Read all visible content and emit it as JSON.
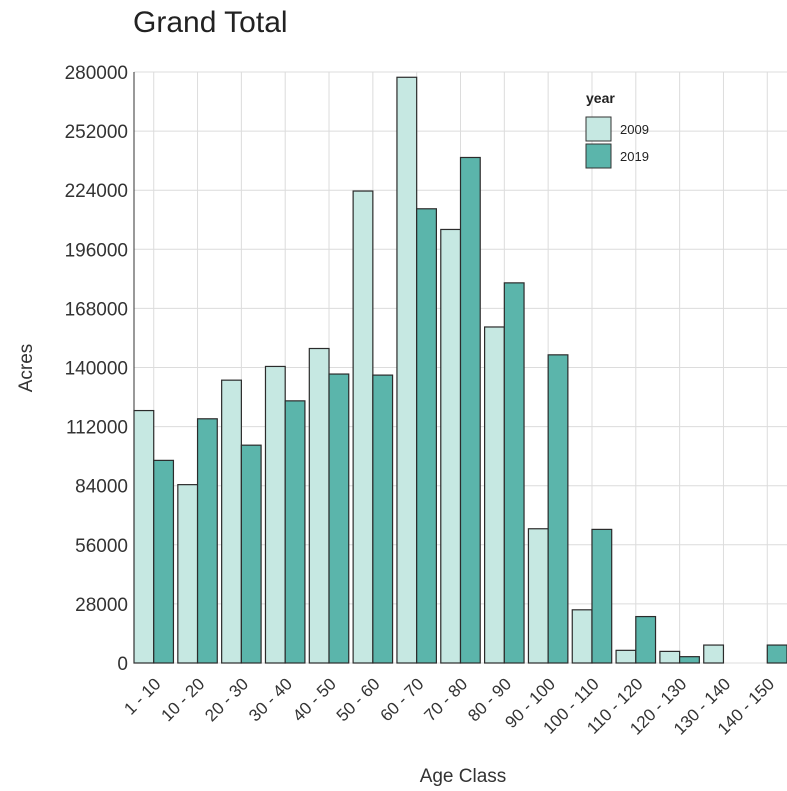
{
  "chart_data": {
    "type": "bar",
    "title": "Grand Total",
    "xlabel": "Age Class",
    "ylabel": "Acres",
    "categories": [
      "1 - 10",
      "10 - 20",
      "20 - 30",
      "30 - 40",
      "40 - 50",
      "50 - 60",
      "60 - 70",
      "70 - 80",
      "80 - 90",
      "90 - 100",
      "100 - 110",
      "110 - 120",
      "120 - 130",
      "130 - 140",
      "140 - 150"
    ],
    "series": [
      {
        "name": "2009",
        "color": "#c6e8e2",
        "values": [
          119600,
          84500,
          134000,
          140500,
          149000,
          223600,
          277500,
          205400,
          159200,
          63600,
          25200,
          6000,
          5500,
          8500,
          0
        ]
      },
      {
        "name": "2019",
        "color": "#5bb5ab",
        "values": [
          96000,
          115700,
          103200,
          124200,
          136900,
          136400,
          215200,
          239500,
          180100,
          146000,
          63300,
          22000,
          3000,
          0,
          8500
        ]
      }
    ],
    "yticks": [
      0,
      28000,
      56000,
      84000,
      112000,
      140000,
      168000,
      196000,
      224000,
      252000,
      280000
    ],
    "ylim": [
      0,
      280000
    ],
    "grid": true,
    "legend": {
      "title": "year",
      "position": "top-right"
    }
  }
}
